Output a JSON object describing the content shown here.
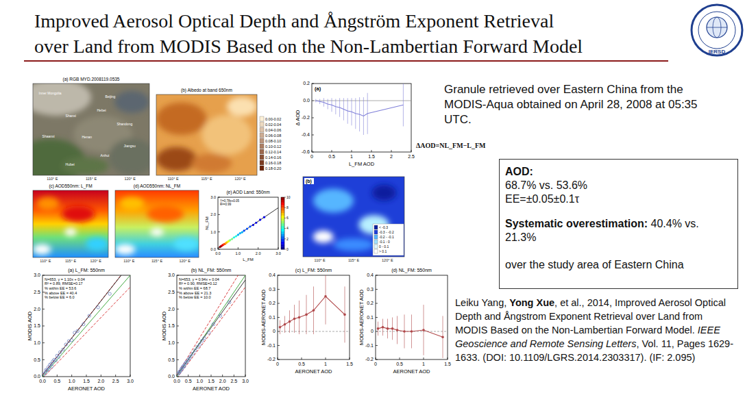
{
  "header": {
    "title_lines": [
      "Improved Aerosol Optical Depth and Ångström Exponent Retrieval",
      "over Land from MODIS Based on the Non-Lambertian Forward Model"
    ],
    "logo_text": "IERSD"
  },
  "description": "Granule retrieved over Eastern China from the MODIS-Aqua obtained on April 28, 2008 at 05:35 UTC.",
  "delta_formula": "ΔAOD=NL_FM−L_FM",
  "stats_box": {
    "aod_heading": "AOD:",
    "aod_compare": "68.7% vs. 53.6%",
    "ee": "EE=±0.05±0.1τ",
    "over_heading": "Systematic overestimation:",
    "over_compare": "40.4% vs. 21.3%",
    "area": "over the study area of Eastern China"
  },
  "citation": {
    "before": "Leiku Yang, ",
    "bold": "Yong Xue",
    "middle": ", et al., 2014, Improved Aerosol Optical Depth and Ångstrom Exponent Retrieval over Land from MODIS Based on the Non-Lambertian Forward Model. ",
    "journal": "IEEE Geoscience and Remote Sensing Letters",
    "after": ", Vol. 11, Pages 1629-1633. (DOI: 10.1109/LGRS.2014.2303317). (IF: 2.095)"
  },
  "maps": [
    {
      "title": "(a) RGB MYD.2008119.0535",
      "place_labels": [
        "Inner Mongolia",
        "Beijing",
        "Hebei",
        "Shanxi",
        "Shandong",
        "Shaanxi",
        "Henan",
        "Jiangsu",
        "Anhui",
        "Hubei"
      ],
      "lon_labels": [
        "110° E",
        "115° E",
        "120° E"
      ]
    },
    {
      "title": "(b) Albedo at band 650nm",
      "color_key": [
        "0.00-0.02",
        "0.02-0.04",
        "0.04-0.06",
        "0.06-0.08",
        "0.08-0.10",
        "0.10-0.12",
        "0.12-0.14",
        "0.14-0.16",
        "0.16-0.18",
        "0.18-0.20"
      ],
      "lon_labels": [
        "110° E",
        "115° E",
        "120° E"
      ]
    },
    {
      "title": "(c) AOD550nm: L_FM",
      "lon_labels": [
        "110° E",
        "115° E",
        "120° E"
      ]
    },
    {
      "title": "(d) AOD550nm: NL_FM",
      "lon_labels": [
        "110° E",
        "115° E",
        "120° E"
      ]
    },
    {
      "title": "(b)",
      "color_key": [
        "< -0.3",
        "-0.3 - -0.2",
        "-0.2 - -0.1",
        "-0.1 - 0",
        "0 - 0.1",
        "> 0.1"
      ],
      "lon_labels": [
        "110° E",
        "115° E",
        "120° E"
      ]
    }
  ],
  "chart_data": [
    {
      "type": "line",
      "title": "(a)",
      "x_label": "L_FM AOD",
      "y_label": "Δ AOD",
      "x": [
        0.1,
        0.2,
        0.3,
        0.4,
        0.5,
        0.6,
        0.7,
        0.8,
        0.9,
        1.0,
        1.1,
        1.2,
        1.3,
        1.4,
        2.3
      ],
      "values": [
        0,
        -0.01,
        -0.02,
        -0.04,
        -0.05,
        -0.07,
        -0.08,
        -0.1,
        -0.12,
        -0.13,
        -0.15,
        -0.16,
        -0.18,
        -0.15,
        -0.05
      ],
      "errors": [
        0.02,
        0.03,
        0.05,
        0.06,
        0.08,
        0.09,
        0.11,
        0.13,
        0.15,
        0.16,
        0.18,
        0.2,
        0.22,
        0.24,
        0.25
      ],
      "color": "#7f7fd8",
      "marker": "none",
      "line_style": "solid",
      "reference_y": 0,
      "xlim": [
        0,
        2.5
      ],
      "xticks": [
        0,
        0.5,
        1,
        1.5,
        2,
        2.5
      ],
      "ylim": [
        -0.6,
        0.2
      ],
      "yticks": [
        -0.6,
        -0.4,
        -0.2,
        {
          "value": 0,
          "label": "0.0"
        },
        0.2
      ]
    },
    {
      "type": "scatter",
      "title": "(e) AOD Land: 550nm",
      "x_label": "L_FM",
      "y_label": "NL_FM",
      "annotations": [
        "Y=0.78x+0.05",
        "R²=0.99"
      ],
      "fit": {
        "slope": 0.78,
        "intercept": 0.05
      },
      "x": [
        0.1,
        0.15,
        0.2,
        0.25,
        0.3,
        0.35,
        0.4,
        0.45,
        0.5,
        0.55,
        0.6,
        0.7,
        0.8,
        0.9,
        1.0,
        1.1,
        1.2,
        1.3,
        1.45,
        1.6,
        1.75,
        1.9,
        2.1,
        2.3
      ],
      "values": [
        0.13,
        0.17,
        0.21,
        0.25,
        0.29,
        0.31,
        0.36,
        0.4,
        0.44,
        0.48,
        0.52,
        0.59,
        0.68,
        0.75,
        0.83,
        0.92,
        0.98,
        1.07,
        1.18,
        1.31,
        1.4,
        1.53,
        1.7,
        1.85
      ],
      "density": [
        10,
        10,
        9,
        9,
        8,
        8,
        7,
        7,
        6,
        6,
        5,
        5,
        4,
        4,
        3,
        3,
        3,
        2,
        2,
        2,
        1,
        1,
        1,
        1
      ],
      "colorbar": {
        "range": [
          0,
          10
        ],
        "ticks": [
          0,
          2,
          4,
          6,
          8,
          10
        ]
      },
      "marker": "dot",
      "xlim": [
        0,
        3
      ],
      "xticks": [
        {
          "value": 0,
          "label": "0.0"
        },
        {
          "value": 1,
          "label": "1.0"
        },
        {
          "value": 2,
          "label": "2.0"
        },
        {
          "value": 3,
          "label": "3.0"
        }
      ],
      "ylim": [
        0,
        3
      ],
      "yticks": [
        {
          "value": 0,
          "label": "0.0"
        },
        {
          "value": 1,
          "label": "1.0"
        },
        {
          "value": 2,
          "label": "2.0"
        },
        {
          "value": 3,
          "label": "3.0"
        }
      ]
    },
    {
      "type": "scatter",
      "title": "(a) L_FM: 550nm",
      "x_label": "AERONET AOD",
      "y_label": "MODIS AOD",
      "annotations": [
        "N=653, y = 1.10x + 0.04",
        "R² = 0.89, RMSE=0.17",
        "% within EE = 53.6",
        "% above EE = 40.4",
        "% below EE = 6.0"
      ],
      "fit": {
        "slope": 1.1,
        "intercept": 0.04
      },
      "ee": {
        "abs": 0.05,
        "rel": 0.1
      },
      "x": [
        0.05,
        0.1,
        0.12,
        0.15,
        0.2,
        0.22,
        0.25,
        0.3,
        0.32,
        0.35,
        0.4,
        0.45,
        0.5,
        0.55,
        0.6,
        0.7,
        0.8,
        0.9,
        1.0,
        1.1,
        1.2,
        1.4,
        1.6,
        1.9,
        2.3
      ],
      "values": [
        0.08,
        0.12,
        0.2,
        0.18,
        0.28,
        0.22,
        0.35,
        0.38,
        0.3,
        0.45,
        0.5,
        0.48,
        0.62,
        0.58,
        0.72,
        0.8,
        0.95,
        1.05,
        1.08,
        1.3,
        1.35,
        1.55,
        1.8,
        2.05,
        2.45
      ],
      "color": "#6f83c0",
      "marker": "open-circle",
      "xlim": [
        0,
        3
      ],
      "xticks": [
        {
          "value": 0,
          "label": "0.0"
        },
        0.5,
        {
          "value": 1,
          "label": "1.0"
        },
        1.5,
        {
          "value": 2,
          "label": "2.0"
        },
        2.5,
        {
          "value": 3,
          "label": "3.0"
        }
      ],
      "ylim": [
        0,
        3
      ],
      "yticks": [
        {
          "value": 0,
          "label": "0.0"
        },
        0.5,
        {
          "value": 1,
          "label": "1.0"
        },
        1.5,
        {
          "value": 2,
          "label": "2.0"
        },
        2.5,
        {
          "value": 3,
          "label": "3.0"
        }
      ]
    },
    {
      "type": "scatter",
      "title": "(b) NL_FM: 550nm",
      "x_label": "AERONET AOD",
      "y_label": "MODIS AOD",
      "annotations": [
        "N=653, y = 0.94x + 0.04",
        "R² = 0.90, RMSE=0.12",
        "% within EE = 68.7",
        "% above EE = 21.3",
        "% below EE = 10.0"
      ],
      "fit": {
        "slope": 0.94,
        "intercept": 0.04
      },
      "ee": {
        "abs": 0.05,
        "rel": 0.1
      },
      "x": [
        0.05,
        0.1,
        0.12,
        0.15,
        0.2,
        0.22,
        0.25,
        0.3,
        0.32,
        0.35,
        0.4,
        0.45,
        0.5,
        0.55,
        0.6,
        0.7,
        0.8,
        0.9,
        1.0,
        1.1,
        1.2,
        1.4,
        1.6,
        1.9,
        2.3
      ],
      "values": [
        0.08,
        0.11,
        0.15,
        0.16,
        0.23,
        0.22,
        0.28,
        0.32,
        0.3,
        0.37,
        0.42,
        0.44,
        0.5,
        0.54,
        0.6,
        0.68,
        0.78,
        0.88,
        0.95,
        1.06,
        1.14,
        1.3,
        1.55,
        1.8,
        2.2
      ],
      "color": "#6f83c0",
      "marker": "open-circle",
      "xlim": [
        0,
        3
      ],
      "xticks": [
        {
          "value": 0,
          "label": "0.0"
        },
        0.5,
        {
          "value": 1,
          "label": "1.0"
        },
        1.5,
        {
          "value": 2,
          "label": "2.0"
        },
        2.5,
        {
          "value": 3,
          "label": "3.0"
        }
      ],
      "ylim": [
        0,
        3
      ],
      "yticks": [
        {
          "value": 0,
          "label": "0.0"
        },
        0.5,
        {
          "value": 1,
          "label": "1.0"
        },
        1.5,
        {
          "value": 2,
          "label": "2.0"
        },
        2.5,
        {
          "value": 3,
          "label": "3.0"
        }
      ]
    },
    {
      "type": "line",
      "title": "(c) L_FM: 550nm",
      "x_label": "AERONET AOD",
      "y_label": "MODIS-AERONET AOD",
      "x": [
        0.05,
        0.15,
        0.25,
        0.35,
        0.45,
        0.6,
        0.75,
        1.0,
        1.4
      ],
      "values": [
        0.03,
        0.05,
        0.07,
        0.09,
        0.1,
        0.12,
        0.15,
        0.25,
        0.12
      ],
      "errors": [
        0.05,
        0.06,
        0.08,
        0.1,
        0.12,
        0.14,
        0.17,
        0.2,
        0.2
      ],
      "color": "#b0484a",
      "marker": "dot",
      "line_style": "solid",
      "reference_y": 0,
      "xlim": [
        0,
        1.5
      ],
      "xticks": [
        0,
        0.5,
        1,
        1.5
      ],
      "ylim": [
        -0.2,
        0.4
      ],
      "yticks": [
        -0.2,
        -0.1,
        0,
        0.1,
        0.2,
        0.3,
        0.4
      ]
    },
    {
      "type": "line",
      "title": "(d) NL_FM: 550nm",
      "x_label": "AERONET AOD",
      "y_label": "MODIS-AERONET AOD",
      "x": [
        0.05,
        0.15,
        0.25,
        0.35,
        0.45,
        0.6,
        0.75,
        1.0,
        1.4
      ],
      "values": [
        0.02,
        0.03,
        0.02,
        0.02,
        0.01,
        0,
        0,
        0.01,
        -0.04
      ],
      "errors": [
        0.05,
        0.06,
        0.07,
        0.08,
        0.1,
        0.12,
        0.12,
        0.18,
        0.15
      ],
      "color": "#b0484a",
      "marker": "dot",
      "line_style": "solid",
      "reference_y": 0,
      "xlim": [
        0,
        1.5
      ],
      "xticks": [
        0,
        0.5,
        1,
        1.5
      ],
      "ylim": [
        -0.2,
        0.4
      ],
      "yticks": [
        -0.2,
        -0.1,
        0,
        0.1,
        0.2,
        0.3,
        0.4
      ]
    }
  ]
}
